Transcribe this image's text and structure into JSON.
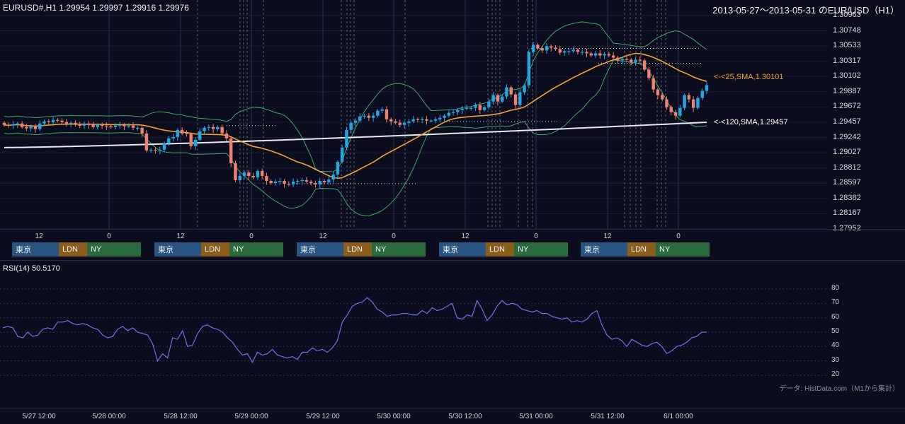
{
  "header": {
    "symbol_info": "EURUSD#,H1 1.29954 1.29997 1.29916 1.29976",
    "period_title": "2013-05-27～2013-05-31 のEUR/USD（H1）"
  },
  "chart_data": [
    {
      "type": "candlestick",
      "title": "EURUSD#,H1 1.29954 1.29997 1.29916 1.29976",
      "ylim": [
        1.27952,
        1.30963
      ],
      "y_ticks": [
        "1.30963",
        "1.30748",
        "1.30533",
        "1.30317",
        "1.30102",
        "1.29887",
        "1.29672",
        "1.29457",
        "1.29242",
        "1.29027",
        "1.28812",
        "1.28597",
        "1.28382",
        "1.28167",
        "1.27952"
      ],
      "x_ticks": [
        "12",
        "0",
        "12",
        "0",
        "12",
        "0",
        "12",
        "0",
        "12",
        "0"
      ],
      "colors": {
        "up": "#1fa8e8",
        "down": "#f08070",
        "sma25": "#f5a033",
        "sma120": "#e8e8ea",
        "bands": "#3fa66a"
      },
      "close": [
        1.2942,
        1.2941,
        1.2943,
        1.2944,
        1.2939,
        1.2937,
        1.294,
        1.2936,
        1.2944,
        1.2947,
        1.2946,
        1.2949,
        1.2948,
        1.2946,
        1.2944,
        1.2945,
        1.2942,
        1.2941,
        1.2944,
        1.2942,
        1.2939,
        1.2942,
        1.2941,
        1.294,
        1.2939,
        1.2941,
        1.2942,
        1.294,
        1.2941,
        1.2938,
        1.2938,
        1.293,
        1.2906,
        1.2907,
        1.2906,
        1.2907,
        1.2916,
        1.2923,
        1.2925,
        1.2935,
        1.293,
        1.2929,
        1.2912,
        1.2921,
        1.2933,
        1.2938,
        1.2939,
        1.2936,
        1.2939,
        1.293,
        1.2923,
        1.2888,
        1.2864,
        1.287,
        1.2875,
        1.287,
        1.2868,
        1.2877,
        1.287,
        1.2863,
        1.286,
        1.2862,
        1.2863,
        1.2859,
        1.2858,
        1.2862,
        1.2863,
        1.2864,
        1.2862,
        1.286,
        1.2858,
        1.2863,
        1.2861,
        1.2865,
        1.2872,
        1.289,
        1.291,
        1.2935,
        1.2945,
        1.2948,
        1.2954,
        1.2955,
        1.2952,
        1.2955,
        1.2962,
        1.2964,
        1.295,
        1.2947,
        1.2945,
        1.2942,
        1.2945,
        1.2947,
        1.295,
        1.2949,
        1.295,
        1.2948,
        1.2948,
        1.295,
        1.2952,
        1.2955,
        1.2959,
        1.296,
        1.2963,
        1.2965,
        1.2966,
        1.2966,
        1.297,
        1.2963,
        1.2967,
        1.2975,
        1.2984,
        1.2975,
        1.2982,
        1.2995,
        1.2985,
        1.297,
        1.2988,
        1.2998,
        1.3045,
        1.3055,
        1.305,
        1.3047,
        1.3053,
        1.3051,
        1.3049,
        1.3044,
        1.3046,
        1.3046,
        1.3048,
        1.3045,
        1.3045,
        1.3043,
        1.304,
        1.3043,
        1.304,
        1.3042,
        1.304,
        1.3037,
        1.3033,
        1.3035,
        1.3034,
        1.303,
        1.3034,
        1.3033,
        1.302,
        1.3008,
        1.2992,
        1.2984,
        1.2978,
        1.2967,
        1.296,
        1.2955,
        1.2966,
        1.2984,
        1.2978,
        1.2966,
        1.298,
        1.299,
        1.2998
      ],
      "series": [
        {
          "name": "<-<25,SMA,1.30101",
          "last_value": 1.30101
        },
        {
          "name": "<-<120,SMA,1.29457",
          "last_value": 1.29457
        }
      ]
    },
    {
      "type": "line",
      "title": "RSI(14) 50.5170",
      "ylim": [
        20,
        80
      ],
      "y_ticks": [
        "80",
        "70",
        "60",
        "50",
        "40",
        "30",
        "20"
      ],
      "x_ticks": [
        "5/27 12:00",
        "5/28 00:00",
        "5/28 12:00",
        "5/29 00:00",
        "5/29 12:00",
        "5/30 00:00",
        "5/30 12:00",
        "5/31 00:00",
        "5/31 12:00",
        "6/1 00:00"
      ],
      "series": [
        {
          "values": [
            53,
            54,
            53,
            47,
            46,
            50,
            47,
            48,
            52,
            53,
            52,
            57,
            57,
            58,
            56,
            55,
            56,
            55,
            53,
            52,
            48,
            46,
            47,
            52,
            54,
            51,
            53,
            50,
            49,
            48,
            42,
            30,
            35,
            32,
            46,
            45,
            51,
            40,
            41,
            49,
            54,
            55,
            53,
            52,
            50,
            46,
            43,
            38,
            34,
            35,
            29,
            36,
            34,
            35,
            38,
            34,
            33,
            32,
            33,
            31,
            36,
            36,
            39,
            37,
            38,
            36,
            39,
            44,
            57,
            62,
            68,
            70,
            71,
            74,
            71,
            66,
            64,
            61,
            62,
            62,
            63,
            63,
            62,
            62,
            65,
            63,
            67,
            65,
            66,
            68,
            70,
            60,
            59,
            62,
            61,
            72,
            66,
            58,
            62,
            68,
            72,
            69,
            70,
            69,
            66,
            65,
            64,
            65,
            63,
            63,
            61,
            60,
            59,
            60,
            57,
            58,
            57,
            59,
            63,
            65,
            55,
            48,
            45,
            46,
            44,
            40,
            45,
            43,
            41,
            40,
            42,
            43,
            40,
            35,
            37,
            40,
            41,
            43,
            46,
            47,
            50,
            50
          ]
        }
      ]
    }
  ],
  "sessions": [
    "東京",
    "LDN",
    "NY"
  ],
  "rsi": {
    "label": "RSI(14) 50.5170"
  },
  "credit": "データ: HistData.com（M1から集計）"
}
